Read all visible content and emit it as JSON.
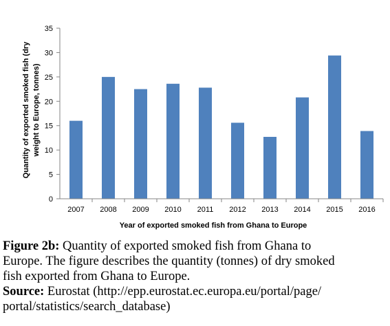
{
  "chart_data": {
    "type": "bar",
    "categories": [
      "2007",
      "2008",
      "2009",
      "2010",
      "2011",
      "2012",
      "2013",
      "2014",
      "2015",
      "2016"
    ],
    "values": [
      16.0,
      25.0,
      22.5,
      23.6,
      22.8,
      15.6,
      12.7,
      20.8,
      29.4,
      13.9
    ],
    "xlabel": "Year of exported  smoked fish from Ghana to Europe",
    "ylabel_lines": [
      "Quantity of exported smoked fish (dry",
      "weight to Europe, tonnes)"
    ],
    "ylim": [
      0,
      35
    ],
    "yticks": [
      0,
      5,
      10,
      15,
      20,
      25,
      30,
      35
    ],
    "bar_color": "#4F81BD",
    "grid": false,
    "legend": "none"
  },
  "caption": {
    "figure_label": "Figure 2b:",
    "figure_text_line1": " Quantity of exported smoked fish from Ghana to",
    "figure_text_line2": "Europe. The figure describes the quantity (tonnes) of dry smoked",
    "figure_text_line3": "fish exported from Ghana to Europe.",
    "source_label": "Source:",
    "source_text_line1": " Eurostat (http://epp.eurostat.ec.europa.eu/portal/page/",
    "source_text_line2": "portal/statistics/search_database)"
  }
}
